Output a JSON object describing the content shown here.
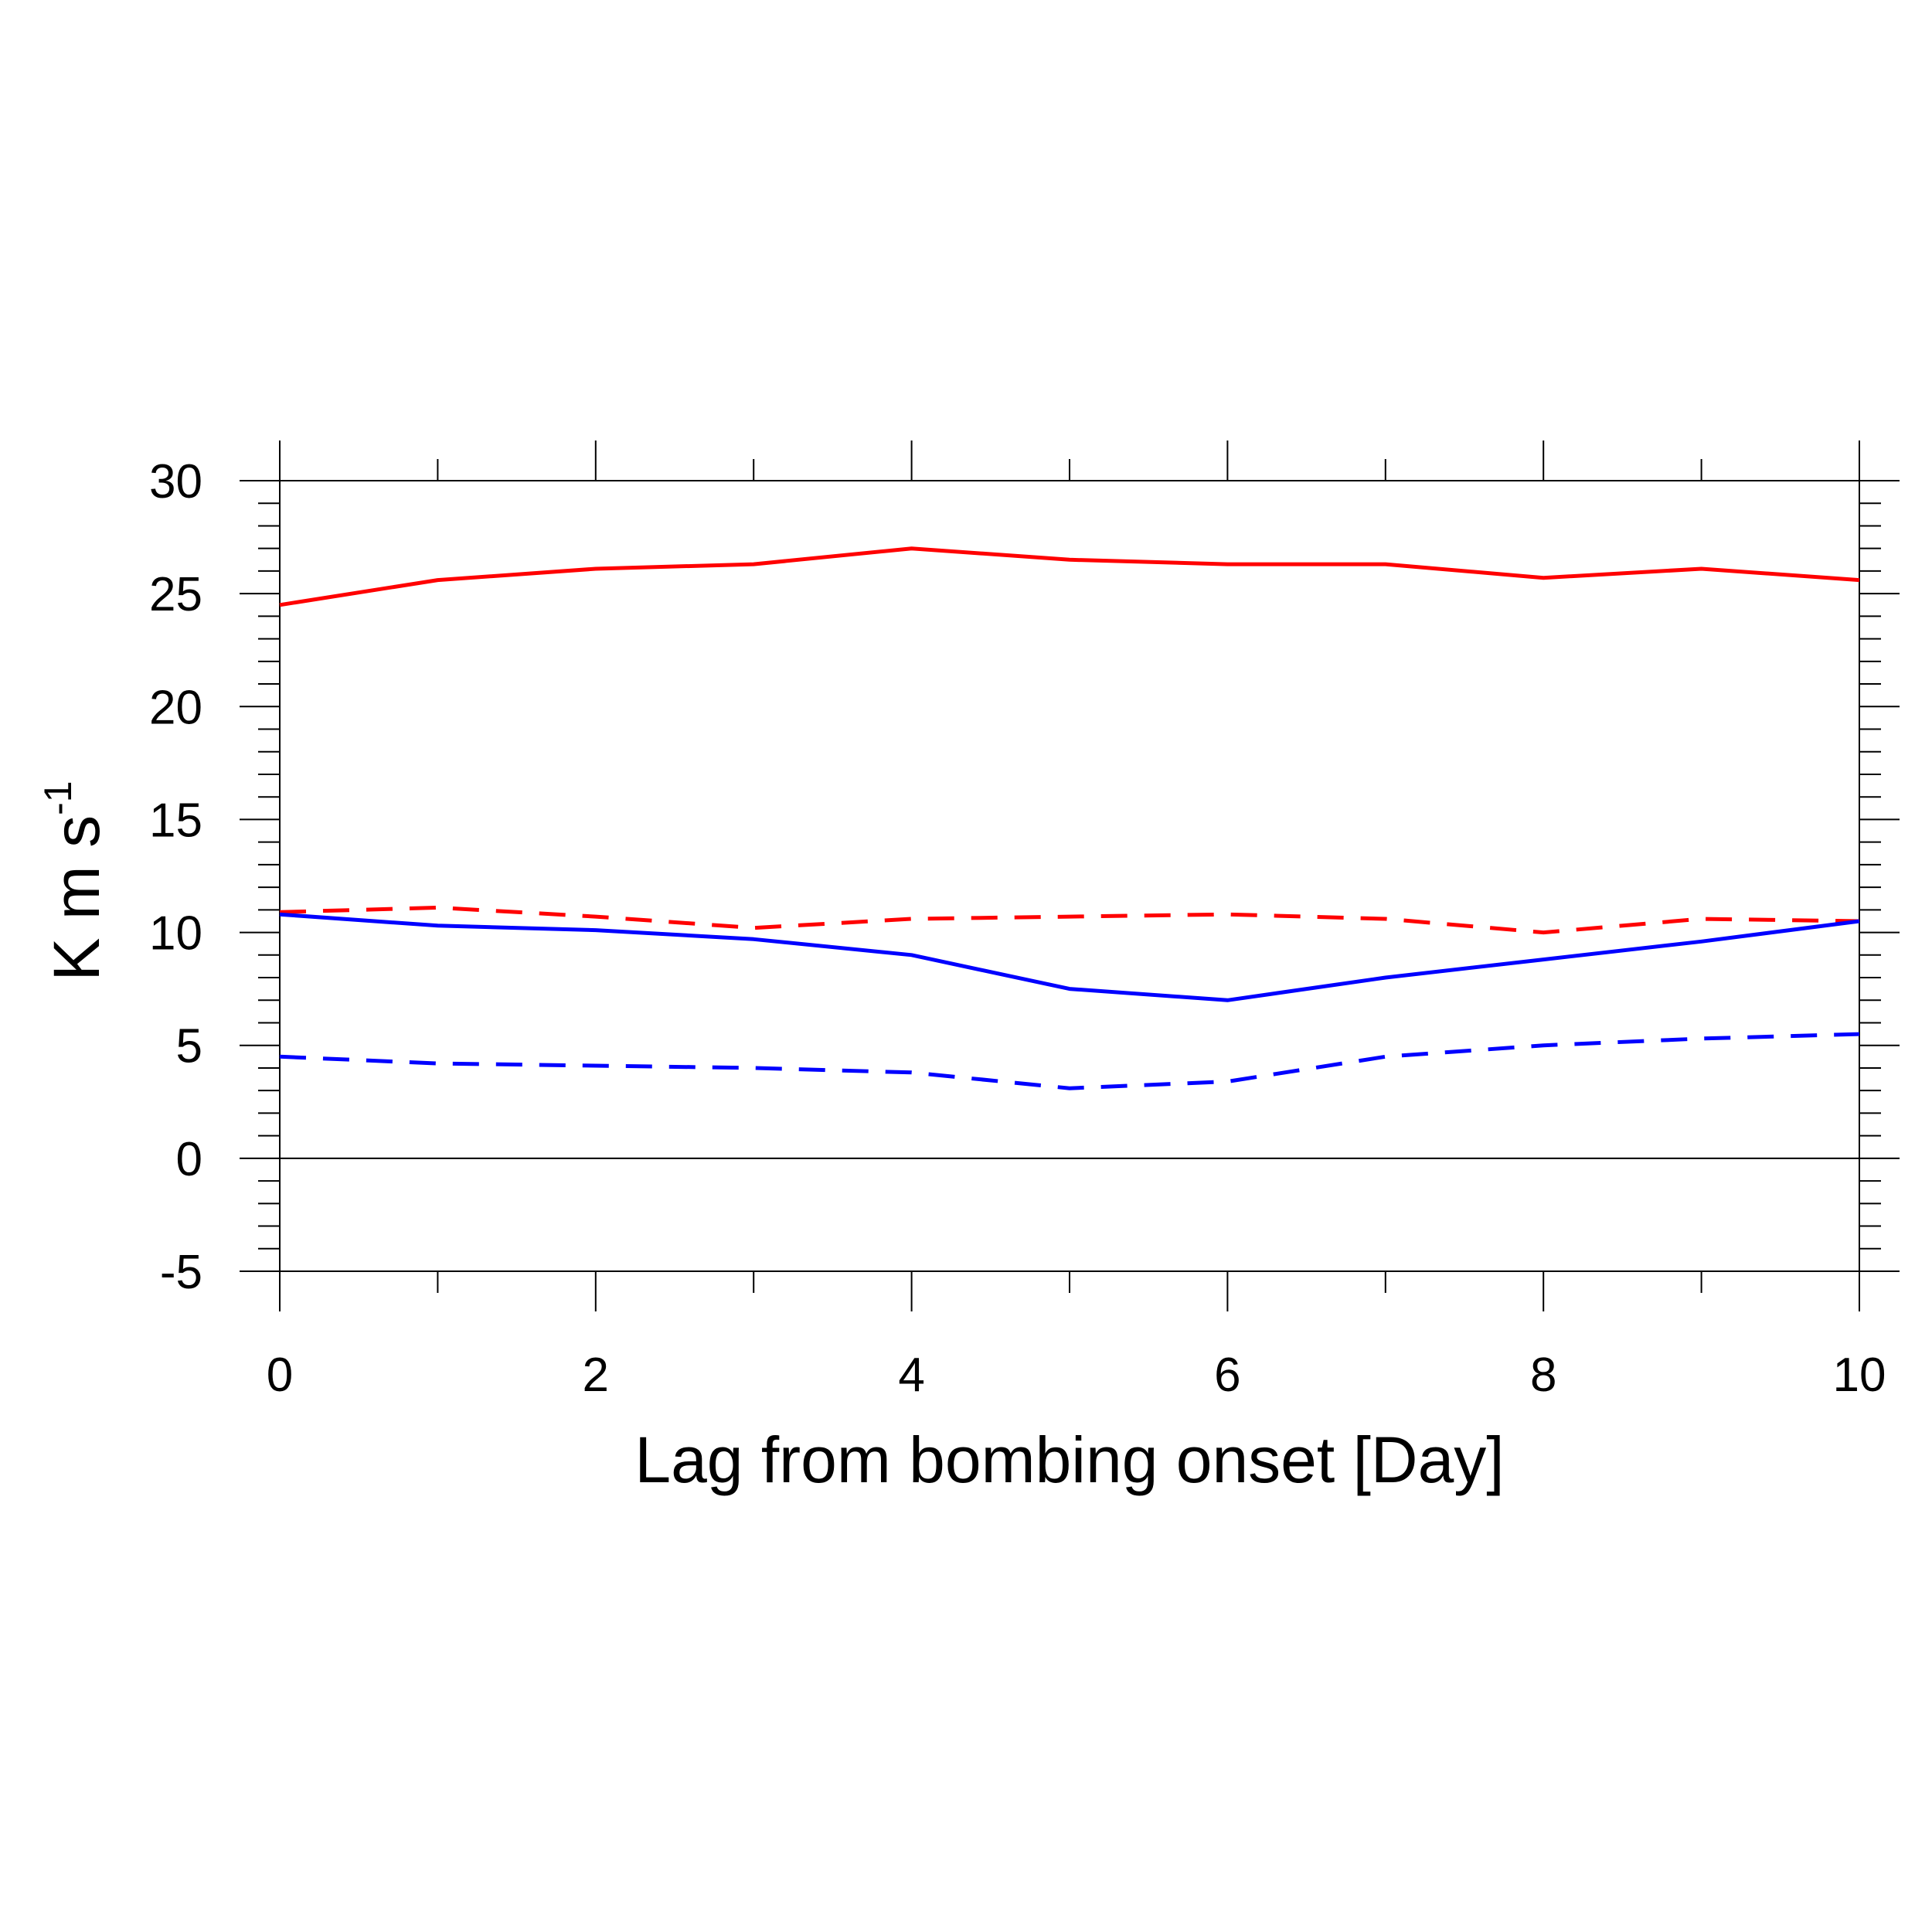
{
  "chart_data": {
    "type": "line",
    "title": "",
    "xlabel": "Lag from bombing onset [Day]",
    "ylabel": {
      "base": "K m s",
      "superscript": "-1"
    },
    "xlim": [
      0,
      10
    ],
    "ylim": [
      -5,
      30
    ],
    "x_major_ticks": [
      0,
      2,
      4,
      6,
      8,
      10
    ],
    "x_minor_ticks": [
      1,
      3,
      5,
      7,
      9
    ],
    "y_major_ticks": [
      -5,
      0,
      5,
      10,
      15,
      20,
      25,
      30
    ],
    "y_minor_step": 1,
    "zero_reference_line": true,
    "grid": false,
    "x": [
      0,
      1,
      2,
      3,
      4,
      5,
      6,
      7,
      8,
      9,
      10
    ],
    "series": [
      {
        "color": "#ff0000",
        "dash": "solid",
        "values": [
          24.5,
          25.6,
          26.1,
          26.3,
          27.0,
          26.5,
          26.3,
          26.3,
          25.7,
          26.1,
          25.6
        ]
      },
      {
        "color": "#ff0000",
        "dash": "dashed",
        "values": [
          10.9,
          11.1,
          10.7,
          10.2,
          10.6,
          10.7,
          10.8,
          10.6,
          10.0,
          10.6,
          10.5
        ]
      },
      {
        "color": "#0000ff",
        "dash": "solid",
        "values": [
          10.8,
          10.3,
          10.1,
          9.7,
          9.0,
          7.5,
          7.0,
          8.0,
          8.8,
          9.6,
          10.5
        ]
      },
      {
        "color": "#0000ff",
        "dash": "dashed",
        "values": [
          4.5,
          4.2,
          4.1,
          4.0,
          3.8,
          3.1,
          3.4,
          4.5,
          5.0,
          5.3,
          5.5
        ]
      }
    ]
  }
}
